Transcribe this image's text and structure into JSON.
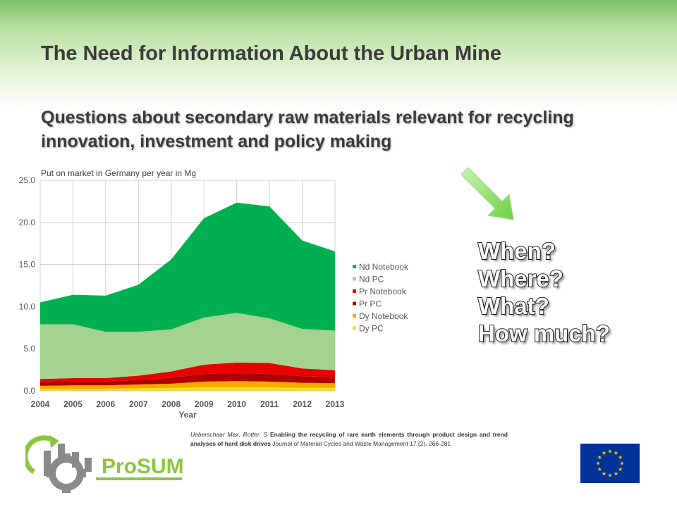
{
  "slide": {
    "title": "The Need for Information About the Urban Mine",
    "subtitle": "Questions about secondary raw materials relevant for recycling innovation, investment and policy making"
  },
  "questions": [
    "When?",
    "Where?",
    "What?",
    "How much?"
  ],
  "citation": {
    "authors": "Ueberschaar Max, Rotter, S",
    "title": "Enabling the recycling of rare earth elements through product design and trend analyses of hard disk drives",
    "journal": "Journal of Material Cycles and Waste Management 17 (2), 266-281"
  },
  "logo": {
    "text": "ProSUM"
  },
  "colors": {
    "title_text": "#3b3b3b",
    "arrow": "#7ed957",
    "eu_blue": "#003399",
    "eu_star": "#ffcc00"
  },
  "chart_data": {
    "type": "area",
    "stacked": true,
    "title": "Put on market in Germany per year in Mg",
    "xlabel": "Year",
    "ylabel": "",
    "x": [
      "2004",
      "2005",
      "2006",
      "2007",
      "2008",
      "2009",
      "2010",
      "2011",
      "2012",
      "2013"
    ],
    "ylim": [
      0,
      25
    ],
    "yticks": [
      "0.0",
      "5.0",
      "10.0",
      "15.0",
      "20.0",
      "25.0"
    ],
    "grid": true,
    "legend_position": "right",
    "series": [
      {
        "name": "Dy PC",
        "color": "#f5e400",
        "values": [
          0.25,
          0.25,
          0.25,
          0.3,
          0.35,
          0.4,
          0.4,
          0.4,
          0.35,
          0.35
        ]
      },
      {
        "name": "Dy Notebook",
        "color": "#f5a800",
        "values": [
          0.35,
          0.4,
          0.4,
          0.45,
          0.5,
          0.7,
          0.75,
          0.7,
          0.6,
          0.55
        ]
      },
      {
        "name": "Pr PC",
        "color": "#b00000",
        "values": [
          0.5,
          0.5,
          0.5,
          0.55,
          0.7,
          0.9,
          0.95,
          0.9,
          0.8,
          0.7
        ]
      },
      {
        "name": "Pr Notebook",
        "color": "#e60000",
        "values": [
          0.3,
          0.35,
          0.35,
          0.5,
          0.75,
          1.1,
          1.25,
          1.3,
          0.9,
          0.85
        ]
      },
      {
        "name": "Nd PC",
        "color": "#a3d38f",
        "values": [
          6.5,
          6.4,
          5.5,
          5.2,
          5.0,
          5.6,
          5.9,
          5.3,
          4.7,
          4.7
        ]
      },
      {
        "name": "Nd Notebook",
        "color": "#00b050",
        "values": [
          2.6,
          3.5,
          4.3,
          5.6,
          8.3,
          11.8,
          13.1,
          13.3,
          10.5,
          9.4
        ]
      }
    ]
  }
}
